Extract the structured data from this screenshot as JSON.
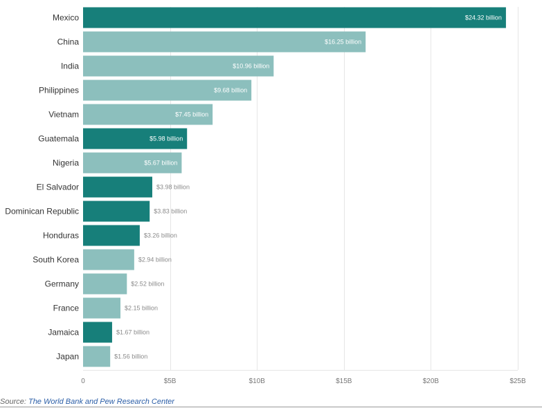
{
  "chart_data": {
    "type": "bar",
    "orientation": "horizontal",
    "categories": [
      "Mexico",
      "China",
      "India",
      "Philippines",
      "Vietnam",
      "Guatemala",
      "Nigeria",
      "El Salvador",
      "Dominican Republic",
      "Honduras",
      "South Korea",
      "Germany",
      "France",
      "Jamaica",
      "Japan"
    ],
    "values": [
      24.32,
      16.25,
      10.96,
      9.68,
      7.45,
      5.98,
      5.67,
      3.98,
      3.83,
      3.26,
      2.94,
      2.52,
      2.15,
      1.67,
      1.56
    ],
    "data_labels": [
      "$24.32 billion",
      "$16.25 billion",
      "$10.96 billion",
      "$9.68 billion",
      "$7.45 billion",
      "$5.98 billion",
      "$5.67 billion",
      "$3.98 billion",
      "$3.83 billion",
      "$3.26 billion",
      "$2.94 billion",
      "$2.52 billion",
      "$2.15 billion",
      "$1.67 billion",
      "$1.56 billion"
    ],
    "highlighted": [
      true,
      false,
      false,
      false,
      false,
      true,
      false,
      true,
      true,
      true,
      false,
      false,
      false,
      true,
      false
    ],
    "xlim": [
      0,
      25
    ],
    "x_ticks": [
      0,
      5,
      10,
      15,
      20,
      25
    ],
    "x_tick_labels": [
      "0",
      "$5B",
      "$10B",
      "$15B",
      "$20B",
      "$25B"
    ],
    "grid": true,
    "colors": {
      "highlight": "#177f7a",
      "default": "#8cbfbd",
      "label_inside": "#ffffff",
      "label_outside": "#8a8a8a",
      "grid": "#e6e6e6"
    }
  },
  "source": {
    "prefix": "Source: ",
    "link_text": "The World Bank and Pew Research Center"
  }
}
